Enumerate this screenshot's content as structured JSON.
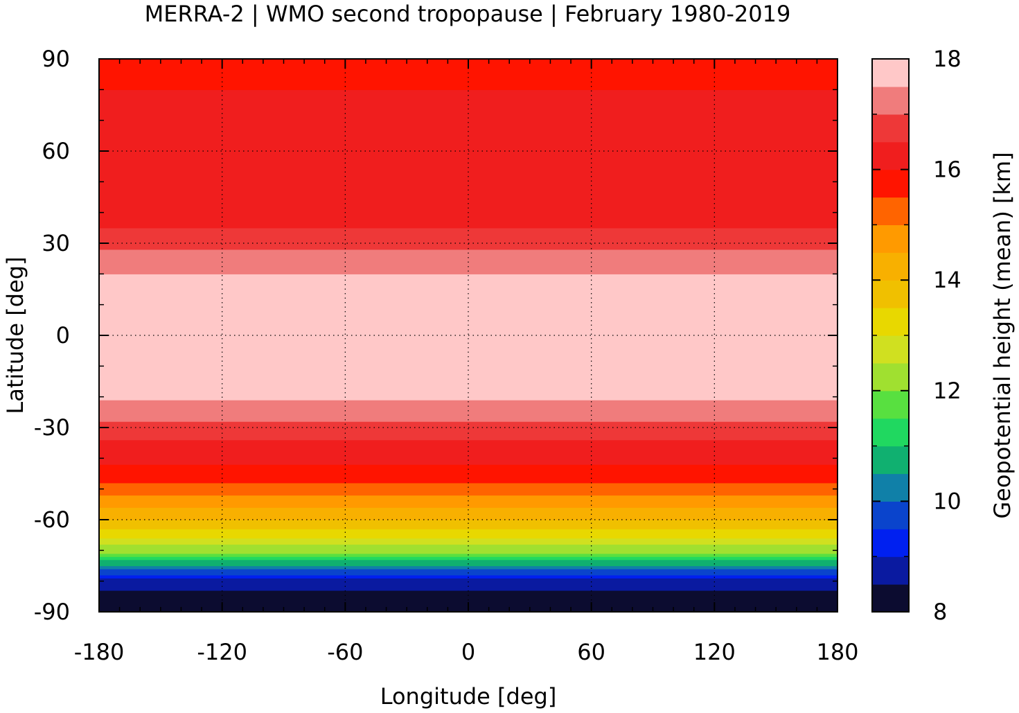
{
  "chart_data": {
    "type": "heatmap",
    "title": "MERRA-2 | WMO second tropopause | February 1980-2019",
    "xlabel": "Longitude [deg]",
    "ylabel": "Latitude [deg]",
    "colorbar_label": "Geopotential height (mean) [km]",
    "xlim": [
      -180,
      180
    ],
    "ylim": [
      -90,
      90
    ],
    "x_ticks": [
      -180,
      -120,
      -60,
      0,
      60,
      120,
      180
    ],
    "y_ticks": [
      -90,
      -60,
      -30,
      0,
      30,
      60,
      90
    ],
    "x_tick_labels": [
      "-180",
      "-120",
      "-60",
      "0",
      "60",
      "120",
      "180"
    ],
    "y_tick_labels": [
      "-90",
      "-60",
      "-30",
      "0",
      "30",
      "60",
      "90"
    ],
    "colorbar_range": [
      8,
      18
    ],
    "colorbar_ticks": [
      8,
      10,
      12,
      14,
      16,
      18
    ],
    "colorbar_tick_labels": [
      "8",
      "10",
      "12",
      "14",
      "16",
      "18"
    ],
    "grid": true,
    "colormap": [
      "#0c0c30",
      "#0a1aa0",
      "#0020f0",
      "#0a44cc",
      "#1080a8",
      "#10b070",
      "#20d860",
      "#58e040",
      "#a0e030",
      "#d0e020",
      "#e8d800",
      "#f0c000",
      "#f8b000",
      "#ff9a00",
      "#ff6400",
      "#ff1400",
      "#f01e1e",
      "#ee3838",
      "#f07c7c",
      "#ffc8c8"
    ],
    "zonal_mean_km": [
      {
        "lat": -90,
        "value": 8.3
      },
      {
        "lat": -80,
        "value": 8.6
      },
      {
        "lat": -70,
        "value": 12.2
      },
      {
        "lat": -60,
        "value": 14.0
      },
      {
        "lat": -50,
        "value": 15.2
      },
      {
        "lat": -45,
        "value": 15.8
      },
      {
        "lat": -35,
        "value": 16.4
      },
      {
        "lat": -25,
        "value": 17.3
      },
      {
        "lat": -15,
        "value": 17.8
      },
      {
        "lat": 0,
        "value": 17.8
      },
      {
        "lat": 15,
        "value": 17.8
      },
      {
        "lat": 25,
        "value": 17.2
      },
      {
        "lat": 35,
        "value": 16.5
      },
      {
        "lat": 50,
        "value": 16.2
      },
      {
        "lat": 65,
        "value": 16.2
      },
      {
        "lat": 80,
        "value": 16.0
      },
      {
        "lat": 90,
        "value": 15.6
      }
    ]
  }
}
